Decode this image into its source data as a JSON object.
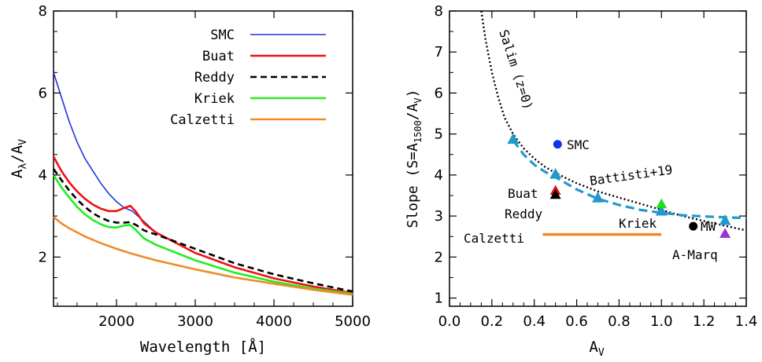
{
  "chart_data": [
    {
      "type": "line",
      "xlabel": "Wavelength [Å]",
      "ylabel_main": "A",
      "ylabel_sub1": "λ",
      "ylabel_mid": "/A",
      "ylabel_sub2": "V",
      "xlim": [
        1200,
        5000
      ],
      "ylim": [
        0.8,
        8.0
      ],
      "xticks": [
        2000,
        3000,
        4000,
        5000
      ],
      "yticks": [
        2,
        4,
        6,
        8
      ],
      "legend_position": "top-right",
      "series": [
        {
          "name": "SMC",
          "color": "#2233dd",
          "dash": "",
          "x": [
            1200,
            1300,
            1400,
            1500,
            1600,
            1700,
            1800,
            1900,
            2000,
            2100,
            2200,
            2300,
            2500,
            3000,
            3500,
            4000,
            4500,
            5000
          ],
          "y": [
            6.5,
            5.9,
            5.3,
            4.8,
            4.4,
            4.1,
            3.8,
            3.55,
            3.35,
            3.2,
            3.12,
            2.95,
            2.6,
            2.1,
            1.75,
            1.48,
            1.28,
            1.12
          ]
        },
        {
          "name": "Buat",
          "color": "#ee1111",
          "dash": "",
          "x": [
            1200,
            1300,
            1400,
            1500,
            1600,
            1700,
            1800,
            1900,
            2000,
            2100,
            2175,
            2250,
            2350,
            2500,
            3000,
            3500,
            4000,
            4500,
            5000
          ],
          "y": [
            4.45,
            4.1,
            3.82,
            3.6,
            3.42,
            3.28,
            3.18,
            3.12,
            3.12,
            3.2,
            3.25,
            3.1,
            2.82,
            2.6,
            2.1,
            1.75,
            1.48,
            1.28,
            1.12
          ]
        },
        {
          "name": "Reddy",
          "color": "#000000",
          "dash": "8,5",
          "x": [
            1200,
            1300,
            1400,
            1500,
            1600,
            1700,
            1800,
            1900,
            2000,
            2100,
            2175,
            2250,
            2350,
            2500,
            3000,
            3500,
            4000,
            4500,
            5000
          ],
          "y": [
            4.15,
            3.88,
            3.62,
            3.4,
            3.22,
            3.07,
            2.96,
            2.88,
            2.84,
            2.84,
            2.85,
            2.78,
            2.65,
            2.55,
            2.2,
            1.85,
            1.58,
            1.36,
            1.16
          ]
        },
        {
          "name": "Kriek",
          "color": "#22ee22",
          "dash": "",
          "x": [
            1200,
            1300,
            1400,
            1500,
            1600,
            1700,
            1800,
            1900,
            2000,
            2100,
            2175,
            2250,
            2350,
            2500,
            3000,
            3500,
            4000,
            4500,
            5000
          ],
          "y": [
            4.0,
            3.7,
            3.45,
            3.22,
            3.04,
            2.9,
            2.8,
            2.73,
            2.72,
            2.77,
            2.78,
            2.65,
            2.45,
            2.3,
            1.92,
            1.62,
            1.4,
            1.23,
            1.1
          ]
        },
        {
          "name": "Calzetti",
          "color": "#f08a28",
          "dash": "",
          "x": [
            1200,
            1300,
            1400,
            1500,
            1600,
            1800,
            2000,
            2200,
            2500,
            3000,
            3500,
            4000,
            4500,
            5000
          ],
          "y": [
            2.98,
            2.82,
            2.7,
            2.6,
            2.5,
            2.34,
            2.2,
            2.08,
            1.92,
            1.7,
            1.5,
            1.35,
            1.2,
            1.08
          ]
        }
      ]
    },
    {
      "type": "scatter",
      "xlabel_main": "A",
      "xlabel_sub": "V",
      "ylabel_a": "Slope (S=A",
      "ylabel_sub1": "1500",
      "ylabel_b": "/A",
      "ylabel_sub2": "V",
      "ylabel_c": ")",
      "xlim": [
        0.0,
        1.4
      ],
      "ylim": [
        0.8,
        8.0
      ],
      "xtick_labels": [
        "0.0",
        "0.2",
        "0.4",
        "0.6",
        "0.8",
        "1.0",
        "1.2",
        "1.4"
      ],
      "xticks": [
        0.0,
        0.2,
        0.4,
        0.6,
        0.8,
        1.0,
        1.2,
        1.4
      ],
      "yticks": [
        1,
        2,
        3,
        4,
        5,
        6,
        7,
        8
      ],
      "points": [
        {
          "name": "SMC",
          "x": 0.51,
          "y": 4.75,
          "marker": "circle",
          "color": "#1133ee"
        },
        {
          "name": "Buat",
          "x": 0.5,
          "y": 3.6,
          "marker": "triangle",
          "color": "#ee1111"
        },
        {
          "name": "Reddy",
          "x": 0.5,
          "y": 3.5,
          "marker": "triangle",
          "color": "#000000"
        },
        {
          "name": "Kriek",
          "x": 1.0,
          "y": 3.27,
          "marker": "triangle",
          "color": "#22dd22"
        },
        {
          "name": "MW",
          "x": 1.15,
          "y": 2.75,
          "marker": "circle",
          "color": "#000000"
        },
        {
          "name": "A-Marq",
          "x": 1.3,
          "y": 2.55,
          "marker": "triangle",
          "color": "#9933cc"
        }
      ],
      "battisti_line": {
        "name": "Battisti+19",
        "color": "#2299cc",
        "x": [
          0.3,
          0.35,
          0.4,
          0.45,
          0.5,
          0.6,
          0.7,
          0.8,
          0.9,
          1.0,
          1.1,
          1.2,
          1.3,
          1.4
        ],
        "y": [
          4.85,
          4.5,
          4.25,
          4.08,
          3.95,
          3.65,
          3.42,
          3.27,
          3.15,
          3.08,
          3.02,
          2.99,
          2.97,
          2.95
        ]
      },
      "battisti_markers": [
        {
          "x": 0.3,
          "y": 4.85
        },
        {
          "x": 0.5,
          "y": 4.0
        },
        {
          "x": 0.7,
          "y": 3.42
        },
        {
          "x": 1.0,
          "y": 3.1
        },
        {
          "x": 1.3,
          "y": 2.87
        }
      ],
      "salim_line": {
        "name": "Salim (z=0)",
        "color": "#000000",
        "x": [
          0.15,
          0.17,
          0.2,
          0.23,
          0.26,
          0.3,
          0.35,
          0.4,
          0.45,
          0.5,
          0.6,
          0.7,
          0.8,
          0.9,
          1.0,
          1.1,
          1.2,
          1.3,
          1.4
        ],
        "y": [
          8.0,
          7.3,
          6.5,
          5.9,
          5.4,
          5.0,
          4.65,
          4.4,
          4.2,
          4.05,
          3.8,
          3.6,
          3.45,
          3.3,
          3.15,
          3.0,
          2.88,
          2.76,
          2.65
        ]
      },
      "calzetti_segment": {
        "name": "Calzetti",
        "color": "#f08a28",
        "x": [
          0.44,
          1.0
        ],
        "y": 2.55
      },
      "labels": {
        "salim": "Salim (z=0)",
        "smc": "SMC",
        "battisti": "Battisti+19",
        "buat": "Buat",
        "reddy": "Reddy",
        "kriek": "Kriek",
        "calzetti": "Calzetti",
        "mw": "MW",
        "amarq": "A-Marq"
      }
    }
  ]
}
